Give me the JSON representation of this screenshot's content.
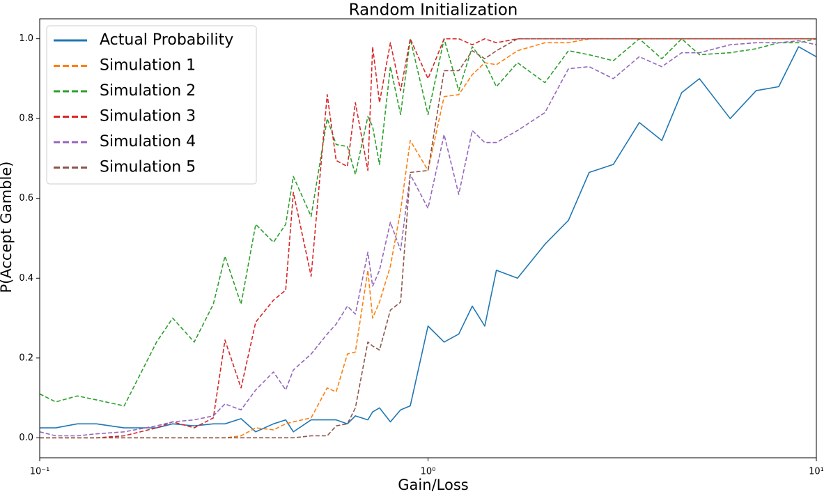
{
  "chart_data": {
    "type": "line",
    "title": "Random Initialization",
    "x_label": "Gain/Loss",
    "y_label": "P(Accept Gamble)",
    "x_scale": "log",
    "xlim": [
      0.1,
      10
    ],
    "xticks": [
      {
        "value": 0.1,
        "label": "10⁻¹"
      },
      {
        "value": 1,
        "label": "10⁰"
      },
      {
        "value": 10,
        "label": "10¹"
      }
    ],
    "ylim": [
      -0.05,
      1.05
    ],
    "yticks": [
      {
        "value": 0,
        "label": "0.0"
      },
      {
        "value": 0.2,
        "label": "0.2"
      },
      {
        "value": 0.4,
        "label": "0.4"
      },
      {
        "value": 0.6,
        "label": "0.6"
      },
      {
        "value": 0.8,
        "label": "0.8"
      },
      {
        "value": 1,
        "label": "1.0"
      }
    ],
    "grid": false,
    "legend": "upper left",
    "x": [
      0.1,
      0.11,
      0.125,
      0.14,
      0.165,
      0.2,
      0.22,
      0.25,
      0.28,
      0.3,
      0.33,
      0.36,
      0.4,
      0.43,
      0.45,
      0.5,
      0.55,
      0.58,
      0.62,
      0.65,
      0.7,
      0.72,
      0.75,
      0.8,
      0.85,
      0.9,
      1.0,
      1.1,
      1.2,
      1.3,
      1.4,
      1.5,
      1.7,
      2.0,
      2.3,
      2.6,
      3.0,
      3.5,
      4.0,
      4.5,
      5.0,
      6.0,
      7.0,
      8.0,
      9.0,
      10
    ],
    "series": [
      {
        "name": "Actual Probability",
        "color": "#1f77b4",
        "style": "solid",
        "values": [
          0.025,
          0.025,
          0.035,
          0.035,
          0.025,
          0.025,
          0.035,
          0.03,
          0.035,
          0.035,
          0.048,
          0.015,
          0.035,
          0.045,
          0.015,
          0.045,
          0.045,
          0.045,
          0.035,
          0.055,
          0.045,
          0.065,
          0.075,
          0.04,
          0.07,
          0.08,
          0.28,
          0.24,
          0.26,
          0.33,
          0.28,
          0.42,
          0.4,
          0.485,
          0.545,
          0.665,
          0.685,
          0.79,
          0.745,
          0.865,
          0.9,
          0.8,
          0.87,
          0.88,
          0.98,
          0.955
        ]
      },
      {
        "name": "Simulation 1",
        "color": "#ff7f0e",
        "style": "dashed",
        "values": [
          0,
          0,
          0,
          0,
          0,
          0,
          0,
          0,
          0,
          0,
          0.005,
          0.025,
          0.02,
          0.035,
          0.04,
          0.05,
          0.125,
          0.115,
          0.21,
          0.215,
          0.42,
          0.3,
          0.34,
          0.43,
          0.57,
          0.745,
          0.67,
          0.855,
          0.86,
          0.91,
          0.94,
          0.935,
          0.97,
          0.99,
          0.99,
          1,
          1,
          1,
          1,
          1,
          1,
          1,
          1,
          1,
          1,
          1
        ]
      },
      {
        "name": "Simulation 2",
        "color": "#2ca02c",
        "style": "dashed",
        "values": [
          0.11,
          0.09,
          0.105,
          0.095,
          0.08,
          0.24,
          0.3,
          0.24,
          0.335,
          0.455,
          0.335,
          0.535,
          0.49,
          0.535,
          0.655,
          0.555,
          0.8,
          0.735,
          0.73,
          0.66,
          0.805,
          0.78,
          0.685,
          0.93,
          0.81,
          1.0,
          0.81,
          1.0,
          0.87,
          0.98,
          0.94,
          0.88,
          0.94,
          0.89,
          0.97,
          0.96,
          0.945,
          1.0,
          0.95,
          1.0,
          0.96,
          0.965,
          0.975,
          0.99,
          0.99,
          1.0
        ]
      },
      {
        "name": "Simulation 3",
        "color": "#d62728",
        "style": "dashed",
        "values": [
          0,
          0,
          0,
          0,
          0.005,
          0.025,
          0.04,
          0.025,
          0.05,
          0.245,
          0.125,
          0.29,
          0.345,
          0.37,
          0.615,
          0.405,
          0.86,
          0.695,
          0.68,
          0.84,
          0.67,
          0.98,
          0.84,
          0.99,
          0.87,
          1.0,
          0.9,
          1.0,
          1.0,
          0.985,
          1.0,
          0.99,
          1,
          1,
          1,
          1,
          1,
          1,
          1,
          1,
          1,
          1,
          1,
          1,
          1,
          1
        ]
      },
      {
        "name": "Simulation 4",
        "color": "#9467bd",
        "style": "dashed",
        "values": [
          0.015,
          0.005,
          0.005,
          0.01,
          0.015,
          0.03,
          0.04,
          0.045,
          0.055,
          0.085,
          0.07,
          0.12,
          0.165,
          0.12,
          0.17,
          0.21,
          0.26,
          0.285,
          0.33,
          0.31,
          0.465,
          0.38,
          0.42,
          0.54,
          0.47,
          0.66,
          0.575,
          0.76,
          0.61,
          0.77,
          0.74,
          0.74,
          0.77,
          0.815,
          0.925,
          0.93,
          0.9,
          0.955,
          0.93,
          0.965,
          0.965,
          0.985,
          0.99,
          0.99,
          0.995,
          0.985
        ]
      },
      {
        "name": "Simulation 5",
        "color": "#8c564b",
        "style": "dashed",
        "values": [
          0,
          0,
          0,
          0,
          0,
          0,
          0,
          0,
          0,
          0,
          0,
          0,
          0,
          0,
          0,
          0.005,
          0.005,
          0.03,
          0.035,
          0.075,
          0.24,
          0.23,
          0.22,
          0.32,
          0.34,
          0.665,
          0.67,
          0.92,
          0.92,
          0.97,
          0.95,
          0.97,
          1,
          1,
          1,
          1,
          1,
          1,
          1,
          1,
          1,
          1,
          1,
          1,
          1,
          1
        ]
      }
    ]
  }
}
